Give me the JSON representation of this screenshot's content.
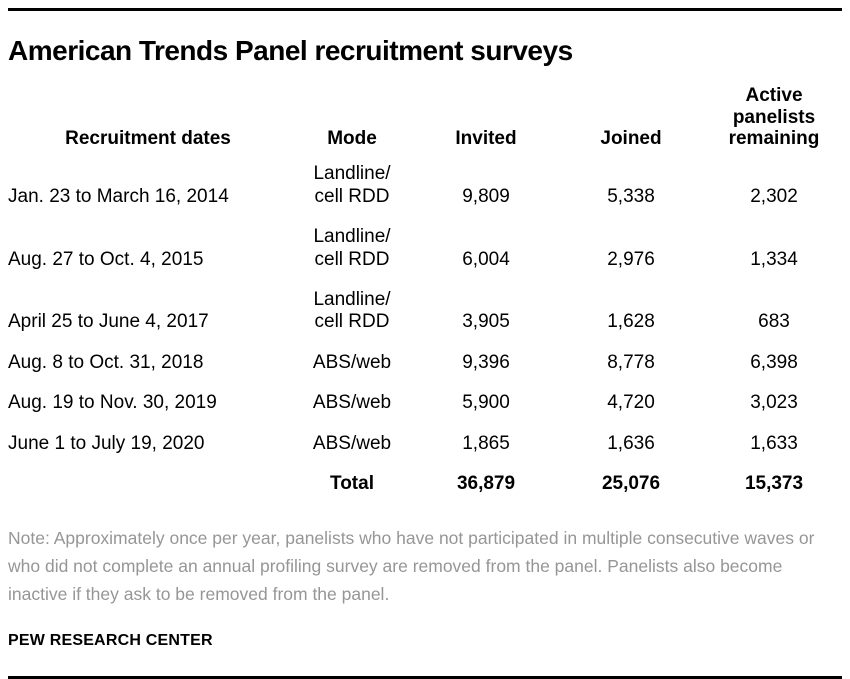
{
  "title": "American Trends Panel recruitment surveys",
  "table": {
    "columns": {
      "dates": "Recruitment dates",
      "mode": "Mode",
      "invited": "Invited",
      "joined": "Joined",
      "active": "Active\npanelists\nremaining"
    },
    "rows": [
      {
        "dates": "Jan. 23 to March 16, 2014",
        "mode": "Landline/\ncell RDD",
        "invited": "9,809",
        "joined": "5,338",
        "active": "2,302"
      },
      {
        "dates": "Aug. 27 to Oct. 4, 2015",
        "mode": "Landline/\ncell RDD",
        "invited": "6,004",
        "joined": "2,976",
        "active": "1,334"
      },
      {
        "dates": "April 25 to June 4, 2017",
        "mode": "Landline/\ncell RDD",
        "invited": "3,905",
        "joined": "1,628",
        "active": "683"
      },
      {
        "dates": "Aug. 8 to Oct. 31, 2018",
        "mode": "ABS/web",
        "invited": "9,396",
        "joined": "8,778",
        "active": "6,398"
      },
      {
        "dates": "Aug. 19 to Nov. 30, 2019",
        "mode": "ABS/web",
        "invited": "5,900",
        "joined": "4,720",
        "active": "3,023"
      },
      {
        "dates": "June 1 to July 19, 2020",
        "mode": "ABS/web",
        "invited": "1,865",
        "joined": "1,636",
        "active": "1,633"
      }
    ],
    "total": {
      "label": "Total",
      "invited": "36,879",
      "joined": "25,076",
      "active": "15,373"
    }
  },
  "note": "Note: Approximately once per year, panelists who have not participated in multiple consecutive waves or who did not complete an annual profiling survey are removed from the panel. Panelists also become inactive if they ask to be removed from the panel.",
  "source": "PEW RESEARCH CENTER",
  "colors": {
    "text": "#000000",
    "note_gray": "#969696",
    "rule": "#000000",
    "background": "#ffffff"
  },
  "chart_data": {
    "type": "table",
    "title": "American Trends Panel recruitment surveys",
    "columns": [
      "Recruitment dates",
      "Mode",
      "Invited",
      "Joined",
      "Active panelists remaining"
    ],
    "rows": [
      [
        "Jan. 23 to March 16, 2014",
        "Landline/cell RDD",
        9809,
        5338,
        2302
      ],
      [
        "Aug. 27 to Oct. 4, 2015",
        "Landline/cell RDD",
        6004,
        2976,
        1334
      ],
      [
        "April 25 to June 4, 2017",
        "Landline/cell RDD",
        3905,
        1628,
        683
      ],
      [
        "Aug. 8 to Oct. 31, 2018",
        "ABS/web",
        9396,
        8778,
        6398
      ],
      [
        "Aug. 19 to Nov. 30, 2019",
        "ABS/web",
        5900,
        4720,
        3023
      ],
      [
        "June 1 to July 19, 2020",
        "ABS/web",
        1865,
        1636,
        1633
      ]
    ],
    "total_row": [
      "",
      "Total",
      36879,
      25076,
      15373
    ],
    "note": "Note: Approximately once per year, panelists who have not participated in multiple consecutive waves or who did not complete an annual profiling survey are removed from the panel. Panelists also become inactive if they ask to be removed from the panel.",
    "source": "PEW RESEARCH CENTER"
  }
}
